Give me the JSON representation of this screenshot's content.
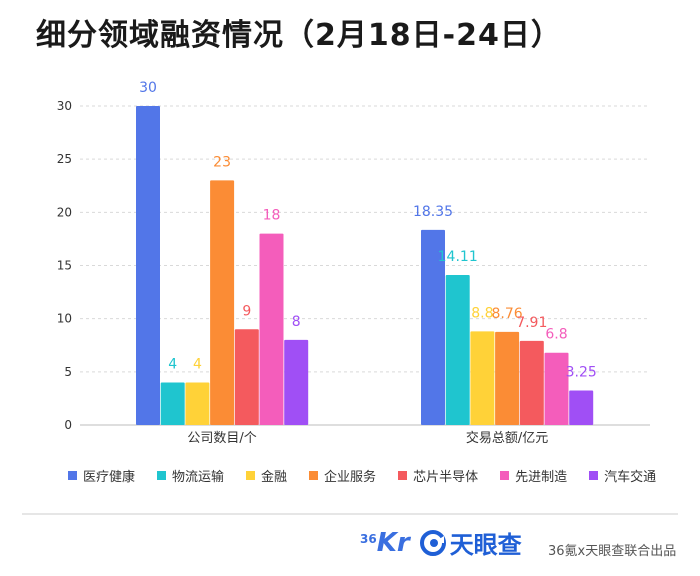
{
  "title": "细分领域融资情况（2月18日-24日）",
  "chart_data": {
    "type": "bar",
    "title": "细分领域融资情况（2月18日-24日）",
    "categories": [
      "公司数目/个",
      "交易总额/亿元"
    ],
    "series": [
      {
        "name": "医疗健康",
        "color": "#5276e8",
        "values": [
          30,
          18.35
        ],
        "labels": [
          "30",
          "18.35"
        ]
      },
      {
        "name": "物流运输",
        "color": "#1fc5cf",
        "values": [
          4,
          14.11
        ],
        "labels": [
          "4",
          "14.11"
        ]
      },
      {
        "name": "金融",
        "color": "#ffd238",
        "values": [
          4,
          8.8
        ],
        "labels": [
          "4",
          "8.8"
        ]
      },
      {
        "name": "企业服务",
        "color": "#fb8c35",
        "values": [
          23,
          8.76
        ],
        "labels": [
          "23",
          "8.76"
        ]
      },
      {
        "name": "芯片半导体",
        "color": "#f45a5e",
        "values": [
          9,
          7.91
        ],
        "labels": [
          "9",
          "7.91"
        ]
      },
      {
        "name": "先进制造",
        "color": "#f45dbb",
        "values": [
          18,
          6.8
        ],
        "labels": [
          "18",
          "6.8"
        ]
      },
      {
        "name": "汽车交通",
        "color": "#a04ff5",
        "values": [
          8,
          3.25
        ],
        "labels": [
          "8",
          "3.25"
        ]
      }
    ],
    "y_ticks": [
      "0",
      "5",
      "10",
      "15",
      "20",
      "25",
      "30"
    ],
    "ylim": [
      0,
      30
    ],
    "grid": true,
    "legend": "bottom",
    "xlabel": "",
    "ylabel": ""
  },
  "footer": {
    "logo_36kr_sup": "36",
    "logo_36kr_main": "Kr",
    "logo_tyc": "天眼查",
    "credit": "36氪x天眼查联合出品"
  }
}
